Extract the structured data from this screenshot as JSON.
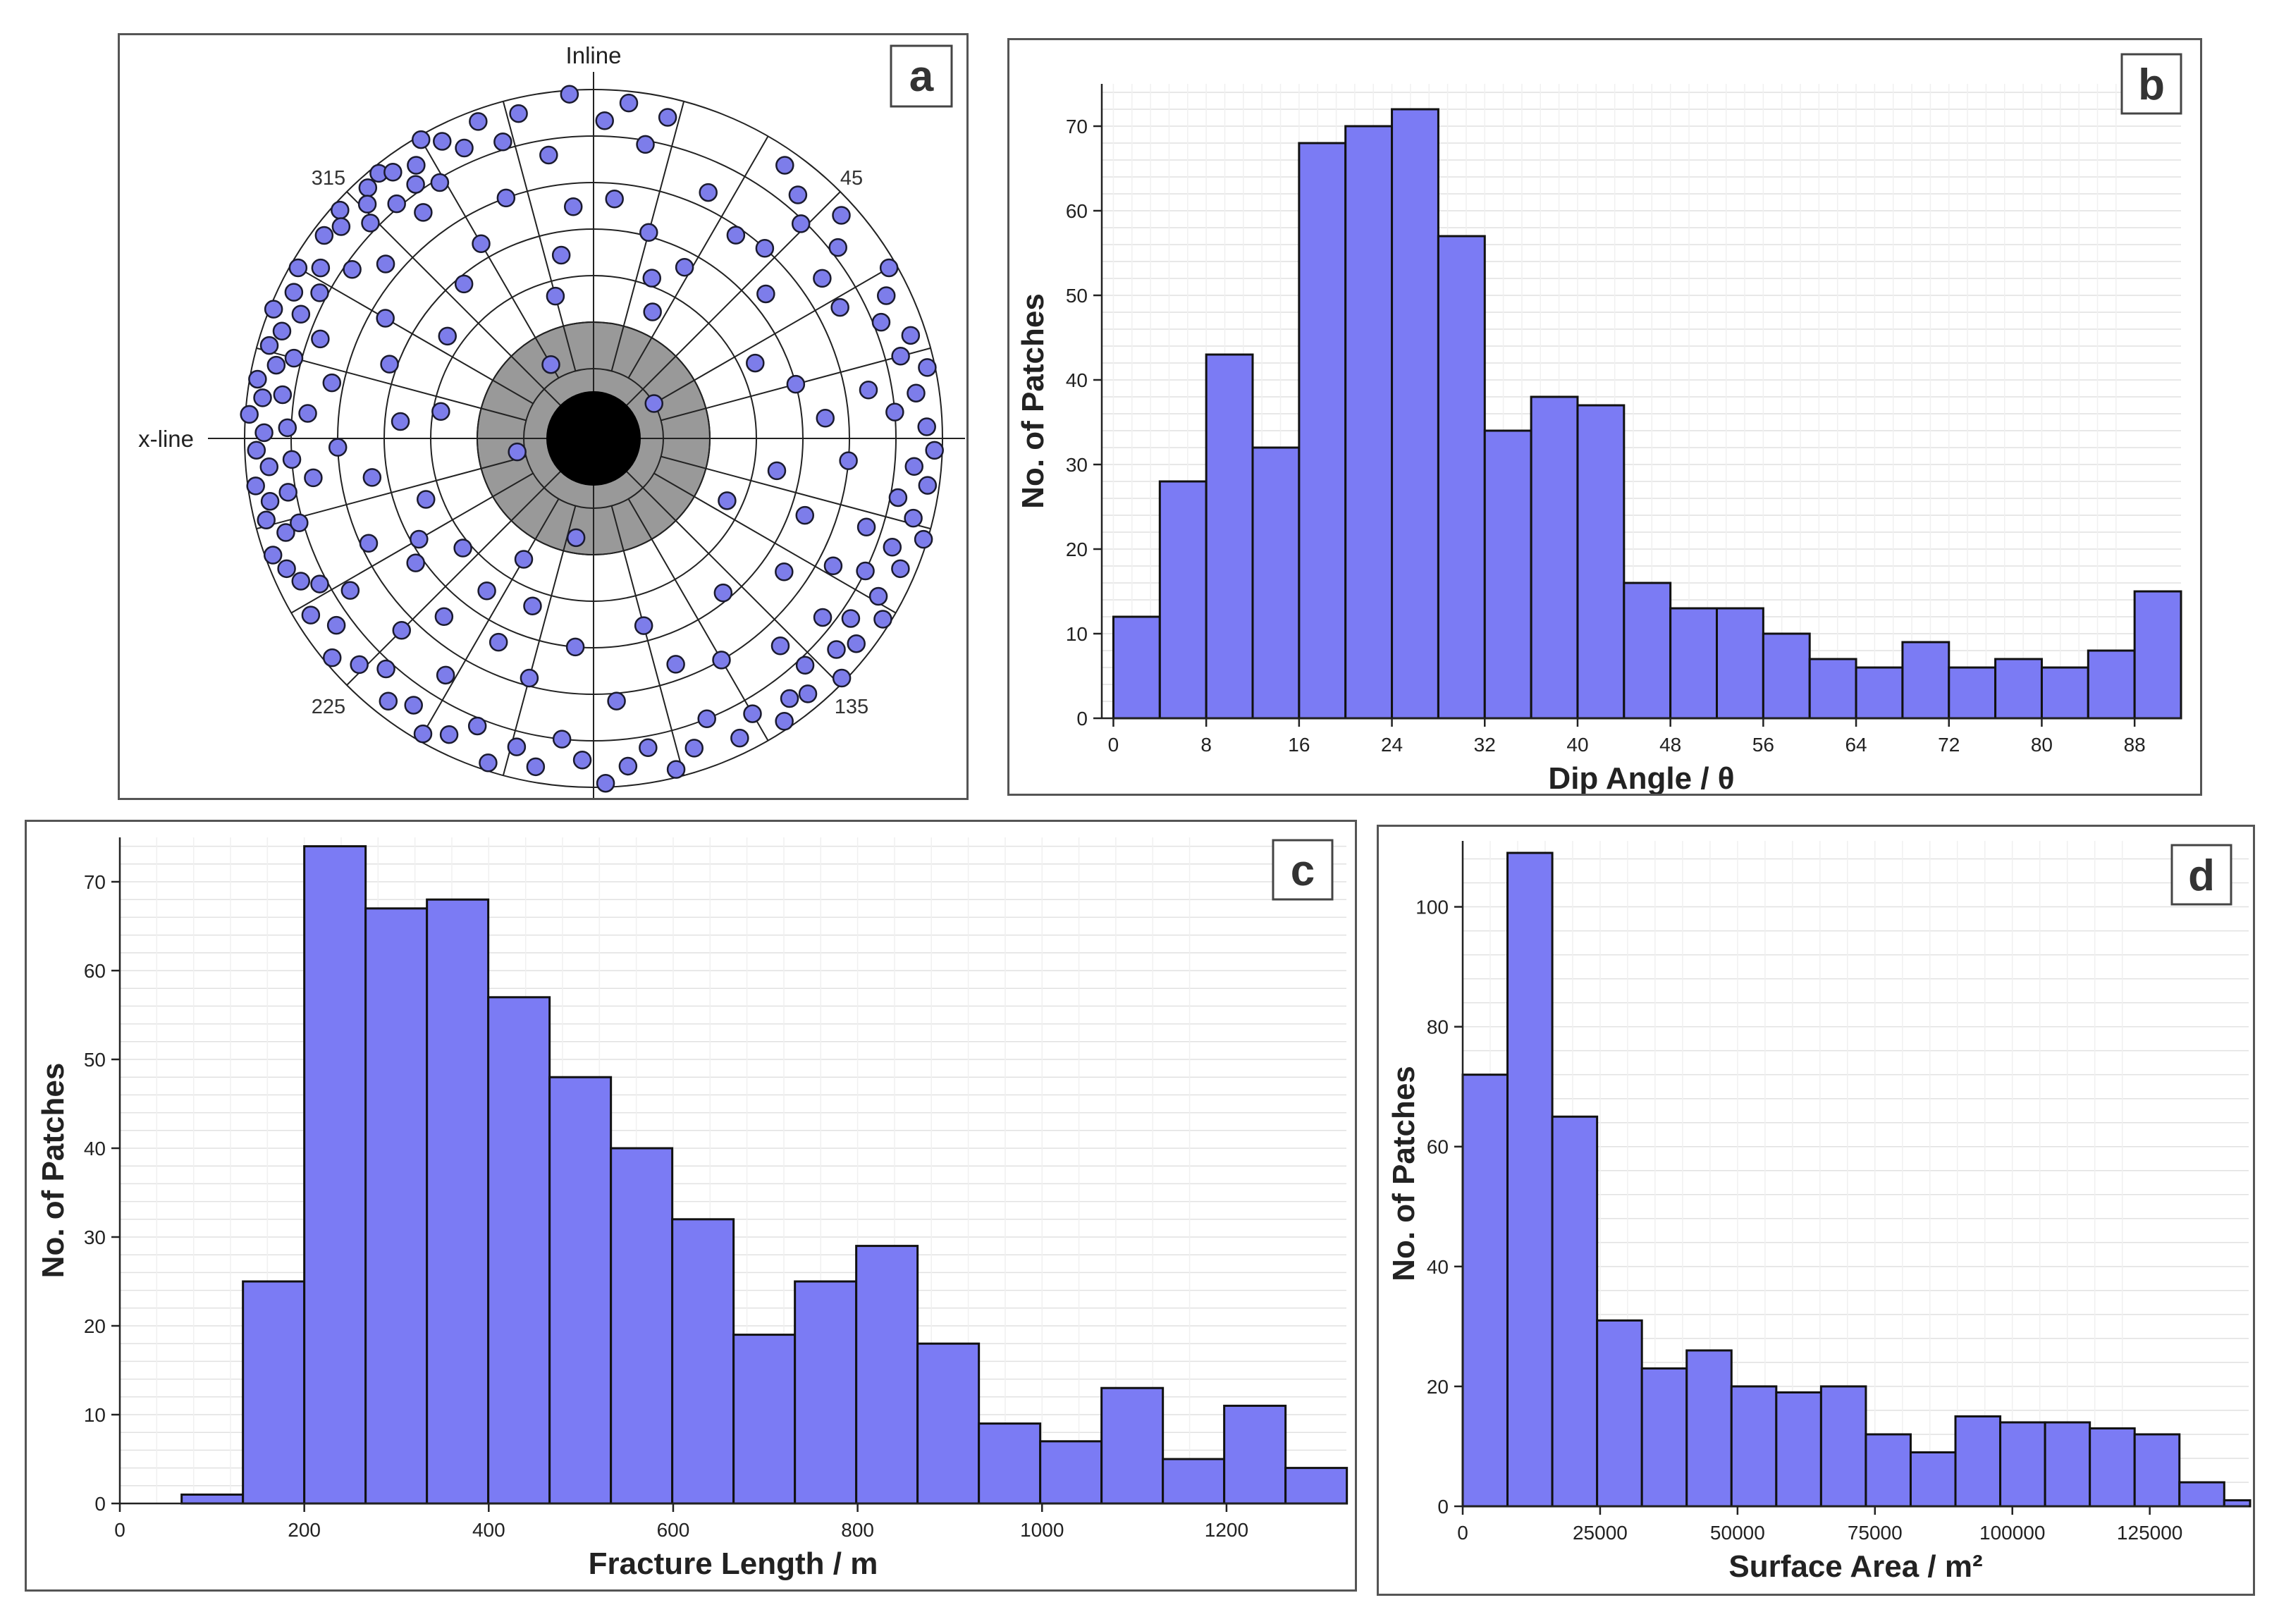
{
  "chart_data": [
    {
      "type": "scatter",
      "panel_label": "a",
      "plot": "polar stereonet",
      "axis_labels": {
        "top": "Inline",
        "left": "x-line"
      },
      "angle_labels": [
        "315",
        "45",
        "225",
        "135"
      ],
      "ring_dips": [
        18,
        30,
        42,
        54,
        66,
        78,
        90
      ],
      "exclusion_dip": 30,
      "blank_dip": 12,
      "points": [
        [
          321,
          88
        ],
        [
          323,
          86
        ],
        [
          318,
          87
        ],
        [
          327,
          84
        ],
        [
          330,
          89
        ],
        [
          316,
          84
        ],
        [
          312,
          88
        ],
        [
          325,
          80
        ],
        [
          333,
          86
        ],
        [
          310,
          85
        ],
        [
          329,
          77
        ],
        [
          320,
          79
        ],
        [
          336,
          82
        ],
        [
          314,
          80
        ],
        [
          307,
          87
        ],
        [
          323,
          73
        ],
        [
          340,
          87
        ],
        [
          300,
          88
        ],
        [
          302,
          83
        ],
        [
          296,
          86
        ],
        [
          292,
          89
        ],
        [
          289,
          85
        ],
        [
          298,
          80
        ],
        [
          286,
          87
        ],
        [
          283,
          84
        ],
        [
          293,
          82
        ],
        [
          280,
          88
        ],
        [
          277,
          86
        ],
        [
          285,
          80
        ],
        [
          274,
          89
        ],
        [
          271,
          85
        ],
        [
          278,
          81
        ],
        [
          268,
          87
        ],
        [
          265,
          84
        ],
        [
          272,
          79
        ],
        [
          262,
          88
        ],
        [
          259,
          85
        ],
        [
          266,
          78
        ],
        [
          256,
          87
        ],
        [
          253,
          83
        ],
        [
          260,
          80
        ],
        [
          250,
          88
        ],
        [
          247,
          86
        ],
        [
          254,
          79
        ],
        [
          244,
          84
        ],
        [
          290,
          75
        ],
        [
          275,
          74
        ],
        [
          262,
          73
        ],
        [
          305,
          76
        ],
        [
          282,
          69
        ],
        [
          268,
          66
        ],
        [
          310,
          70
        ],
        [
          343,
          80
        ],
        [
          347,
          86
        ],
        [
          351,
          74
        ],
        [
          356,
          89
        ],
        [
          2,
          82
        ],
        [
          6,
          87
        ],
        [
          10,
          77
        ],
        [
          13,
          85
        ],
        [
          355,
          60
        ],
        [
          5,
          62
        ],
        [
          15,
          55
        ],
        [
          350,
          48
        ],
        [
          25,
          70
        ],
        [
          35,
          86
        ],
        [
          40,
          82
        ],
        [
          44,
          77
        ],
        [
          48,
          86
        ],
        [
          52,
          80
        ],
        [
          42,
          66
        ],
        [
          55,
          72
        ],
        [
          60,
          88
        ],
        [
          64,
          84
        ],
        [
          68,
          80
        ],
        [
          62,
          72
        ],
        [
          72,
          86
        ],
        [
          75,
          82
        ],
        [
          78,
          88
        ],
        [
          82,
          84
        ],
        [
          85,
          78
        ],
        [
          88,
          86
        ],
        [
          80,
          72
        ],
        [
          92,
          88
        ],
        [
          95,
          83
        ],
        [
          98,
          87
        ],
        [
          101,
          80
        ],
        [
          104,
          85
        ],
        [
          107,
          89
        ],
        [
          110,
          82
        ],
        [
          113,
          86
        ],
        [
          116,
          78
        ],
        [
          119,
          84
        ],
        [
          122,
          88
        ],
        [
          125,
          81
        ],
        [
          128,
          86
        ],
        [
          131,
          83
        ],
        [
          134,
          89
        ],
        [
          137,
          80
        ],
        [
          140,
          86
        ],
        [
          143,
          84
        ],
        [
          108,
          74
        ],
        [
          118,
          70
        ],
        [
          128,
          75
        ],
        [
          138,
          72
        ],
        [
          146,
          88
        ],
        [
          150,
          82
        ],
        [
          154,
          86
        ],
        [
          158,
          78
        ],
        [
          162,
          84
        ],
        [
          166,
          88
        ],
        [
          170,
          81
        ],
        [
          174,
          85
        ],
        [
          178,
          89
        ],
        [
          182,
          83
        ],
        [
          186,
          78
        ],
        [
          190,
          86
        ],
        [
          194,
          82
        ],
        [
          198,
          88
        ],
        [
          202,
          80
        ],
        [
          206,
          85
        ],
        [
          210,
          88
        ],
        [
          214,
          83
        ],
        [
          218,
          86
        ],
        [
          222,
          80
        ],
        [
          226,
          84
        ],
        [
          230,
          88
        ],
        [
          234,
          82
        ],
        [
          238,
          86
        ],
        [
          242,
          80
        ],
        [
          212,
          72
        ],
        [
          225,
          70
        ],
        [
          238,
          74
        ],
        [
          150,
          66
        ],
        [
          160,
          62
        ],
        [
          175,
          68
        ],
        [
          195,
          64
        ],
        [
          205,
          58
        ],
        [
          220,
          60
        ],
        [
          235,
          56
        ],
        [
          245,
          64
        ],
        [
          165,
          50
        ],
        [
          185,
          54
        ],
        [
          200,
          46
        ],
        [
          215,
          48
        ],
        [
          230,
          44
        ],
        [
          125,
          60
        ],
        [
          140,
          52
        ],
        [
          110,
          58
        ],
        [
          95,
          66
        ],
        [
          85,
          60
        ],
        [
          100,
          48
        ],
        [
          75,
          54
        ],
        [
          65,
          46
        ],
        [
          50,
          58
        ],
        [
          35,
          64
        ],
        [
          28,
          50
        ],
        [
          20,
          44
        ],
        [
          340,
          66
        ],
        [
          330,
          58
        ],
        [
          320,
          52
        ],
        [
          300,
          62
        ],
        [
          290,
          56
        ],
        [
          275,
          50
        ],
        [
          260,
          58
        ],
        [
          250,
          46
        ],
        [
          240,
          52
        ],
        [
          305,
          46
        ],
        [
          345,
          38
        ],
        [
          25,
          36
        ],
        [
          115,
          38
        ],
        [
          210,
          36
        ],
        [
          280,
          40
        ],
        [
          60,
          18
        ],
        [
          190,
          26
        ],
        [
          260,
          20
        ],
        [
          330,
          22
        ]
      ]
    },
    {
      "type": "bar",
      "panel_label": "b",
      "xlabel": "Dip Angle / θ",
      "ylabel": "No. of Patches",
      "xlim": [
        -1,
        92
      ],
      "ylim": [
        0,
        75
      ],
      "bin_width": 4,
      "bin_start": 0,
      "values": [
        12,
        28,
        43,
        32,
        68,
        70,
        72,
        57,
        34,
        38,
        37,
        16,
        13,
        13,
        10,
        7,
        6,
        9,
        6,
        7,
        6,
        8,
        15
      ],
      "xticks": [
        "0",
        "8",
        "16",
        "24",
        "32",
        "40",
        "48",
        "56",
        "64",
        "72",
        "80",
        "88"
      ],
      "yticks": [
        "0",
        "10",
        "20",
        "30",
        "40",
        "50",
        "60",
        "70"
      ]
    },
    {
      "type": "bar",
      "panel_label": "c",
      "xlabel": "Fracture Length / m",
      "ylabel": "No. of Patches",
      "xlim": [
        0,
        1330
      ],
      "ylim": [
        0,
        75
      ],
      "bin_width": 66.5,
      "bin_start": 67,
      "values": [
        1,
        25,
        74,
        67,
        68,
        57,
        48,
        40,
        32,
        19,
        25,
        29,
        18,
        9,
        7,
        13,
        5,
        11,
        4
      ],
      "xticks": [
        "0",
        "200",
        "400",
        "600",
        "800",
        "1000",
        "1200"
      ],
      "yticks": [
        "0",
        "10",
        "20",
        "30",
        "40",
        "50",
        "60",
        "70"
      ]
    },
    {
      "type": "bar",
      "panel_label": "d",
      "xlabel": "Surface Area / m²",
      "ylabel": "No. of Patches",
      "xlim": [
        0,
        143000
      ],
      "ylim": [
        0,
        111
      ],
      "bin_width": 8150,
      "bin_start": 0,
      "values": [
        72,
        109,
        65,
        31,
        23,
        26,
        20,
        19,
        20,
        12,
        9,
        15,
        14,
        14,
        13,
        12,
        4,
        1
      ],
      "xticks": [
        "0",
        "25000",
        "50000",
        "75000",
        "100000",
        "125000"
      ],
      "yticks": [
        "0",
        "20",
        "40",
        "60",
        "80",
        "100"
      ]
    }
  ],
  "colors": {
    "bar": "#7b7bf4",
    "bar_edge": "#111111",
    "point": "#7d7dea",
    "exclusion": "#999999",
    "center": "#000000"
  }
}
